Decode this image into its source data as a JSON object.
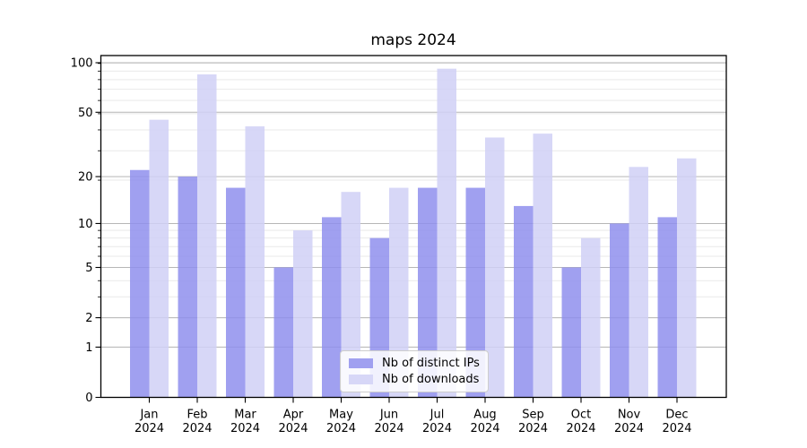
{
  "title": "maps 2024",
  "chart_data": {
    "type": "bar",
    "categories": [
      "Jan",
      "Feb",
      "Mar",
      "Apr",
      "May",
      "Jun",
      "Jul",
      "Aug",
      "Sep",
      "Oct",
      "Nov",
      "Dec"
    ],
    "category_year": "2024",
    "series": [
      {
        "name": "Nb of distinct IPs",
        "color": "#a0a0f0",
        "values": [
          22,
          20,
          17,
          5,
          11,
          8,
          17,
          17,
          13,
          5,
          10,
          11
        ]
      },
      {
        "name": "Nb of downloads",
        "color": "#d7d7f7",
        "values": [
          45,
          85,
          41,
          9,
          16,
          17,
          92,
          35,
          37,
          8,
          23,
          26
        ]
      }
    ],
    "yscale": "log1p",
    "yticks": [
      0,
      1,
      2,
      5,
      10,
      20,
      50,
      100
    ],
    "ylim": [
      0,
      110
    ],
    "grid": true,
    "legend_position": "lower center",
    "colors": {
      "major_gridline": "#b6b6b6",
      "minor_gridline": "#e9e9e9",
      "axis": "#000000",
      "text": "#000000"
    }
  }
}
